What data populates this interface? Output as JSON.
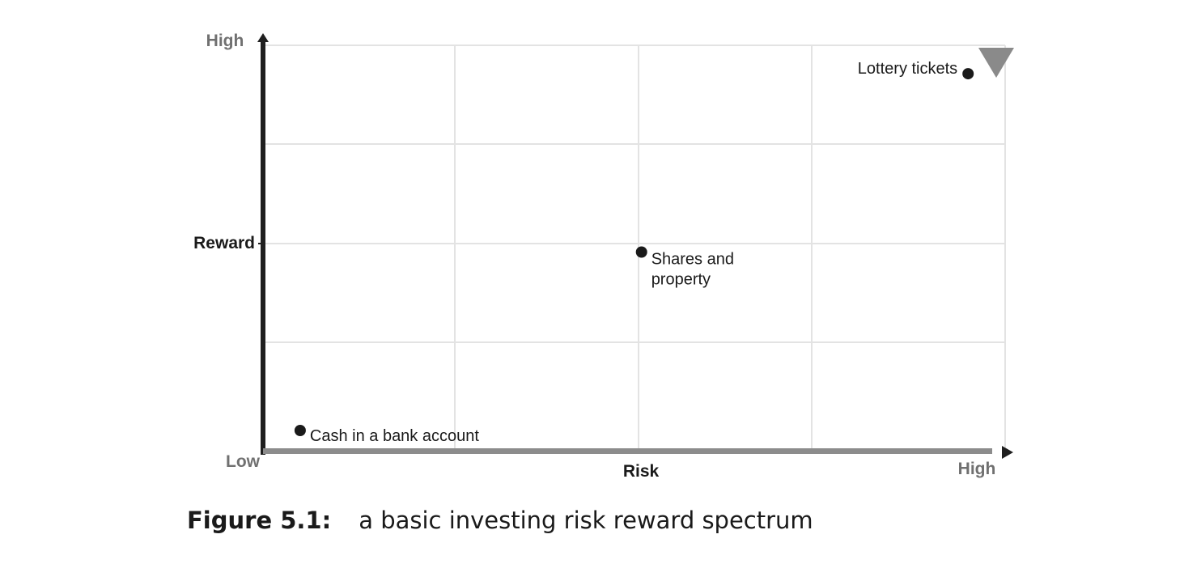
{
  "chart_data": {
    "type": "scatter",
    "xlabel": "Risk",
    "ylabel": "Reward",
    "x_low_label": "Low",
    "x_high_label": "High",
    "y_high_label": "High",
    "xlim": [
      0,
      100
    ],
    "ylim": [
      0,
      100
    ],
    "grid": true,
    "points": [
      {
        "label": "Cash in a bank account",
        "x": 5,
        "y": 5
      },
      {
        "label": "Shares and property",
        "x": 51,
        "y": 49
      },
      {
        "label": "Lottery tickets",
        "x": 95,
        "y": 93
      }
    ]
  },
  "caption": {
    "label": "Figure  5.1:",
    "text": "a basic investing risk reward spectrum"
  },
  "colors": {
    "axis_y": "#1f1f1f",
    "axis_x": "#8c8c8c",
    "grid": "#e3e3e3",
    "point": "#1a1a1a",
    "marker": "#8a8a8a",
    "label_muted": "#707070"
  }
}
